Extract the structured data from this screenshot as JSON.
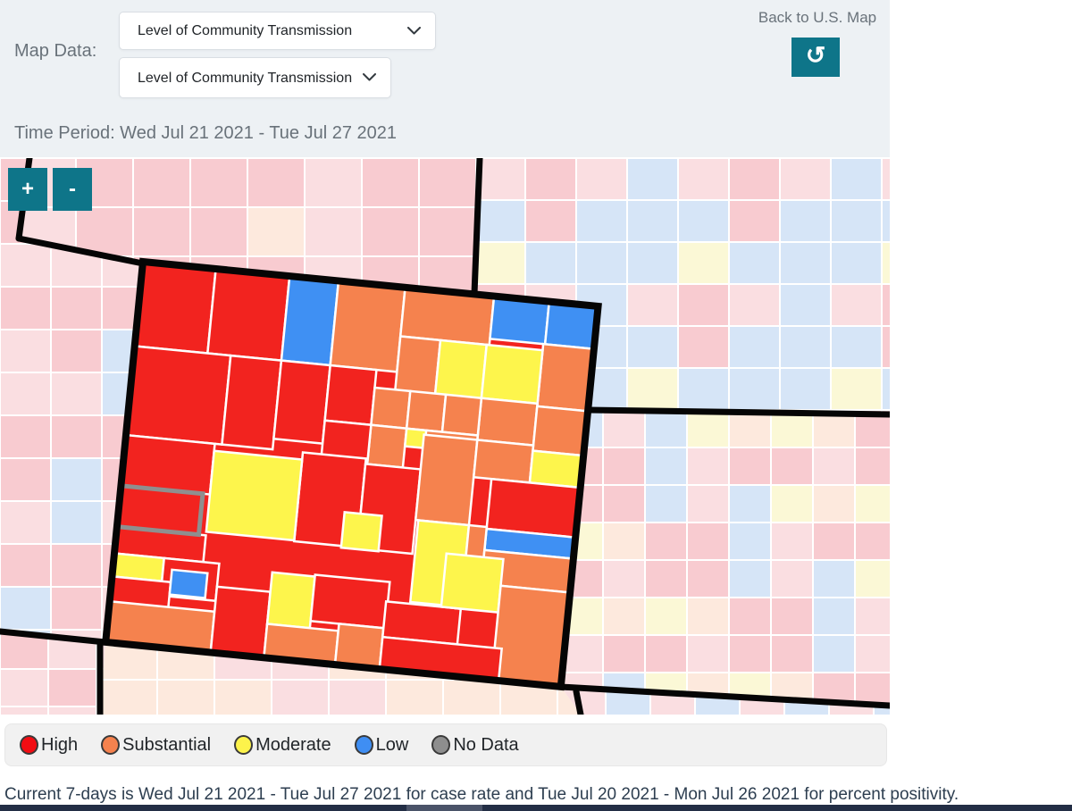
{
  "header": {
    "map_data_label": "Map Data:",
    "dropdown_primary": {
      "value": "Level of Community Transmission"
    },
    "dropdown_secondary": {
      "value": "Level of Community Transmission"
    },
    "back_to_us_map_label": "Back to U.S. Map",
    "reset_icon_glyph": "↺",
    "time_period": "Time Period: Wed Jul 21 2021 - Tue Jul 27 2021"
  },
  "map": {
    "zoom_in_label": "+",
    "zoom_out_label": "-",
    "colors": {
      "high": "#f2231f",
      "substantial": "#f5824e",
      "moderate": "#fdf54c",
      "low": "#3f90f3",
      "no_data": "#8e8e8e",
      "highlight_outline": "#8f8f8f",
      "state_border": "#050505",
      "county_border": "#ffffff",
      "faded_red": "#f8cbd0",
      "faded_pink": "#fadee1",
      "faded_cream": "#fde9dd",
      "faded_yellow": "#fbf8d6",
      "faded_blue": "#d6e5f7",
      "teal_accent": "#0e7589"
    }
  },
  "legend": {
    "items": [
      {
        "key": "high",
        "label": "High",
        "color": "#f20d13"
      },
      {
        "key": "substantial",
        "label": "Substantial",
        "color": "#f5824e"
      },
      {
        "key": "moderate",
        "label": "Moderate",
        "color": "#fdf34b"
      },
      {
        "key": "low",
        "label": "Low",
        "color": "#3f8ef3"
      },
      {
        "key": "no-data",
        "label": "No Data",
        "color": "#8e8e8e"
      }
    ]
  },
  "footer": {
    "note": "Current 7-days is Wed Jul 21 2021 - Tue Jul 27 2021 for case rate and Tue Jul 20 2021 - Mon Jul 26 2021 for percent positivity."
  }
}
